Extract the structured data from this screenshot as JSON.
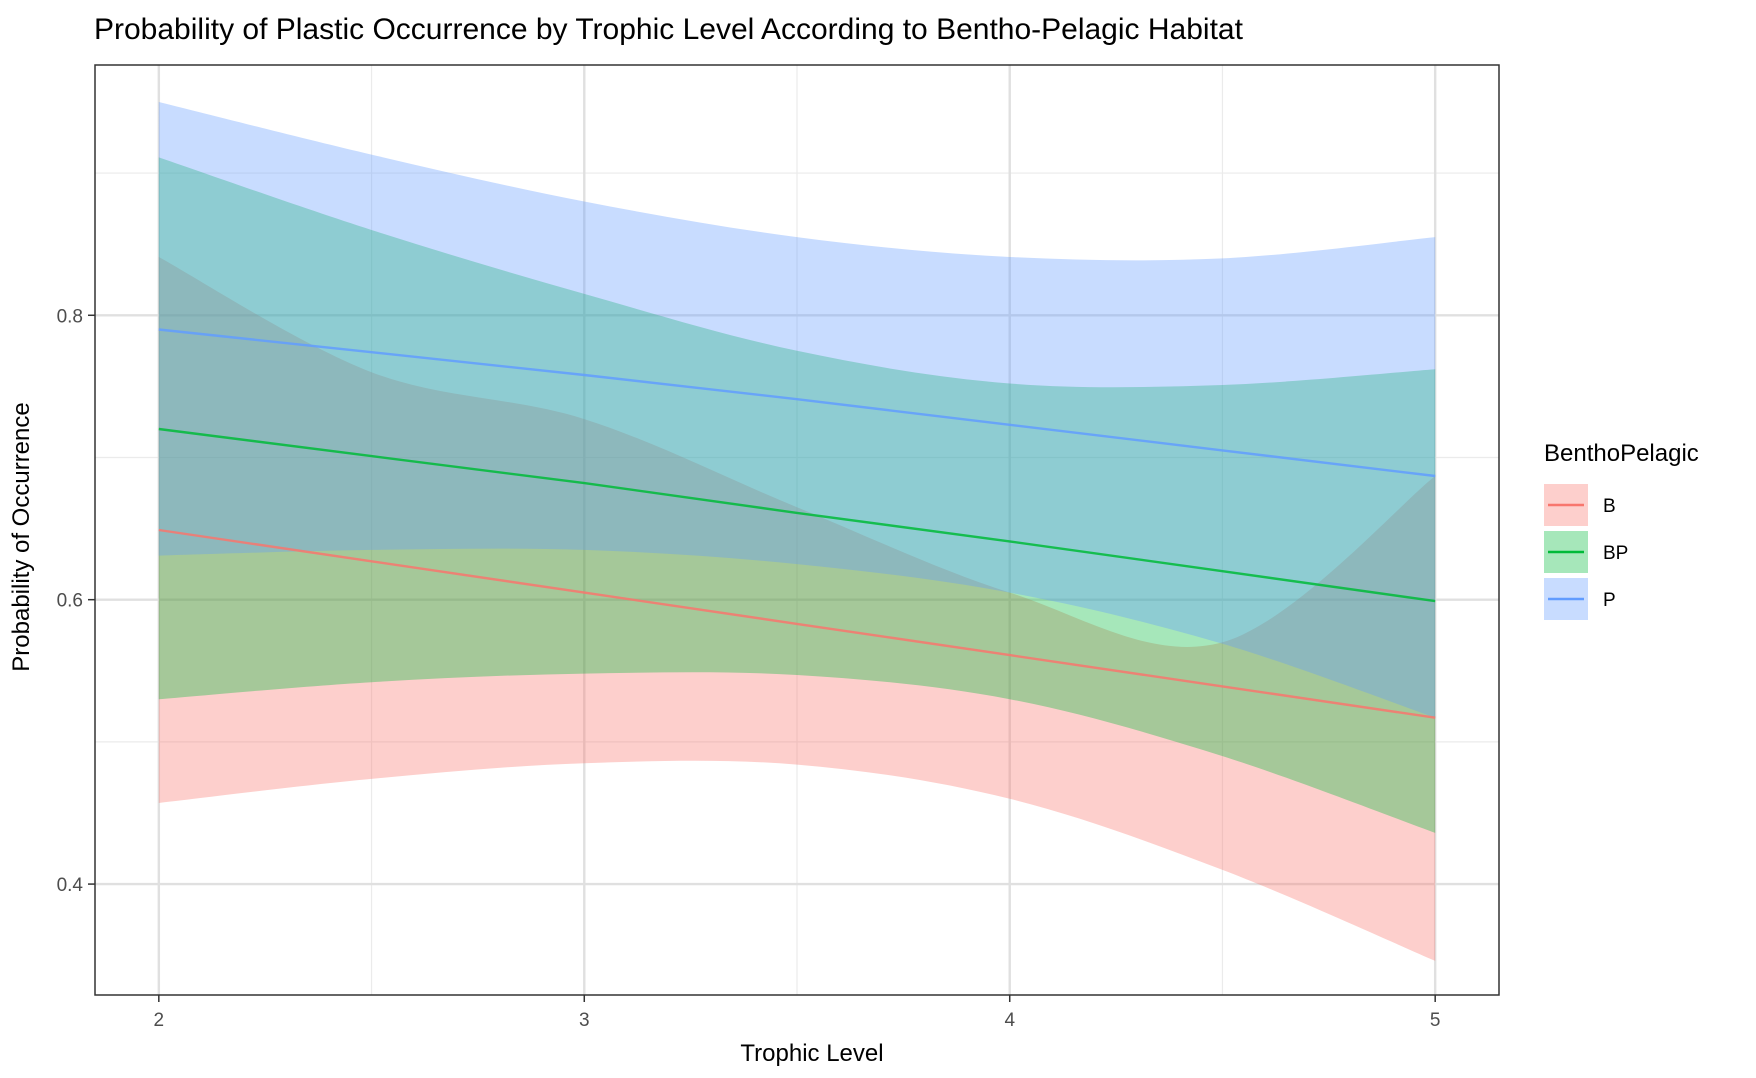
{
  "chart_data": {
    "type": "line",
    "title": "Probability of Plastic Occurrence by Trophic Level According to Bentho-Pelagic Habitat",
    "xlabel": "Trophic Level",
    "ylabel": "Probability of Occurrence",
    "xlim": [
      1.85,
      5.15
    ],
    "ylim": [
      0.322,
      0.976
    ],
    "x_ticks": [
      2,
      3,
      4,
      5
    ],
    "y_ticks": [
      0.4,
      0.6,
      0.8
    ],
    "x_minor": [
      2.5,
      3.5,
      4.5
    ],
    "y_minor": [
      0.5,
      0.7,
      0.9
    ],
    "grid": true,
    "legend": {
      "title": "BenthoPelagic",
      "position": "right"
    },
    "x": [
      2,
      2.5,
      3,
      3.5,
      4,
      4.5,
      5
    ],
    "series": [
      {
        "name": "B",
        "color": "#F8766D",
        "values": [
          0.649,
          0.627,
          0.605,
          0.583,
          0.561,
          0.539,
          0.517
        ],
        "lower": [
          0.457,
          0.474,
          0.485,
          0.484,
          0.46,
          0.41,
          0.346
        ],
        "upper": [
          0.841,
          0.76,
          0.727,
          0.665,
          0.605,
          0.57,
          0.687
        ]
      },
      {
        "name": "BP",
        "color": "#00BA38",
        "values": [
          0.72,
          0.701,
          0.682,
          0.661,
          0.641,
          0.62,
          0.599
        ],
        "lower": [
          0.53,
          0.542,
          0.548,
          0.547,
          0.53,
          0.49,
          0.436
        ],
        "upper": [
          0.911,
          0.86,
          0.815,
          0.775,
          0.752,
          0.751,
          0.762
        ]
      },
      {
        "name": "P",
        "color": "#619CFF",
        "values": [
          0.79,
          0.774,
          0.758,
          0.741,
          0.723,
          0.705,
          0.687
        ],
        "lower": [
          0.631,
          0.635,
          0.635,
          0.625,
          0.605,
          0.569,
          0.517
        ],
        "upper": [
          0.95,
          0.913,
          0.88,
          0.855,
          0.841,
          0.84,
          0.855
        ]
      }
    ]
  }
}
